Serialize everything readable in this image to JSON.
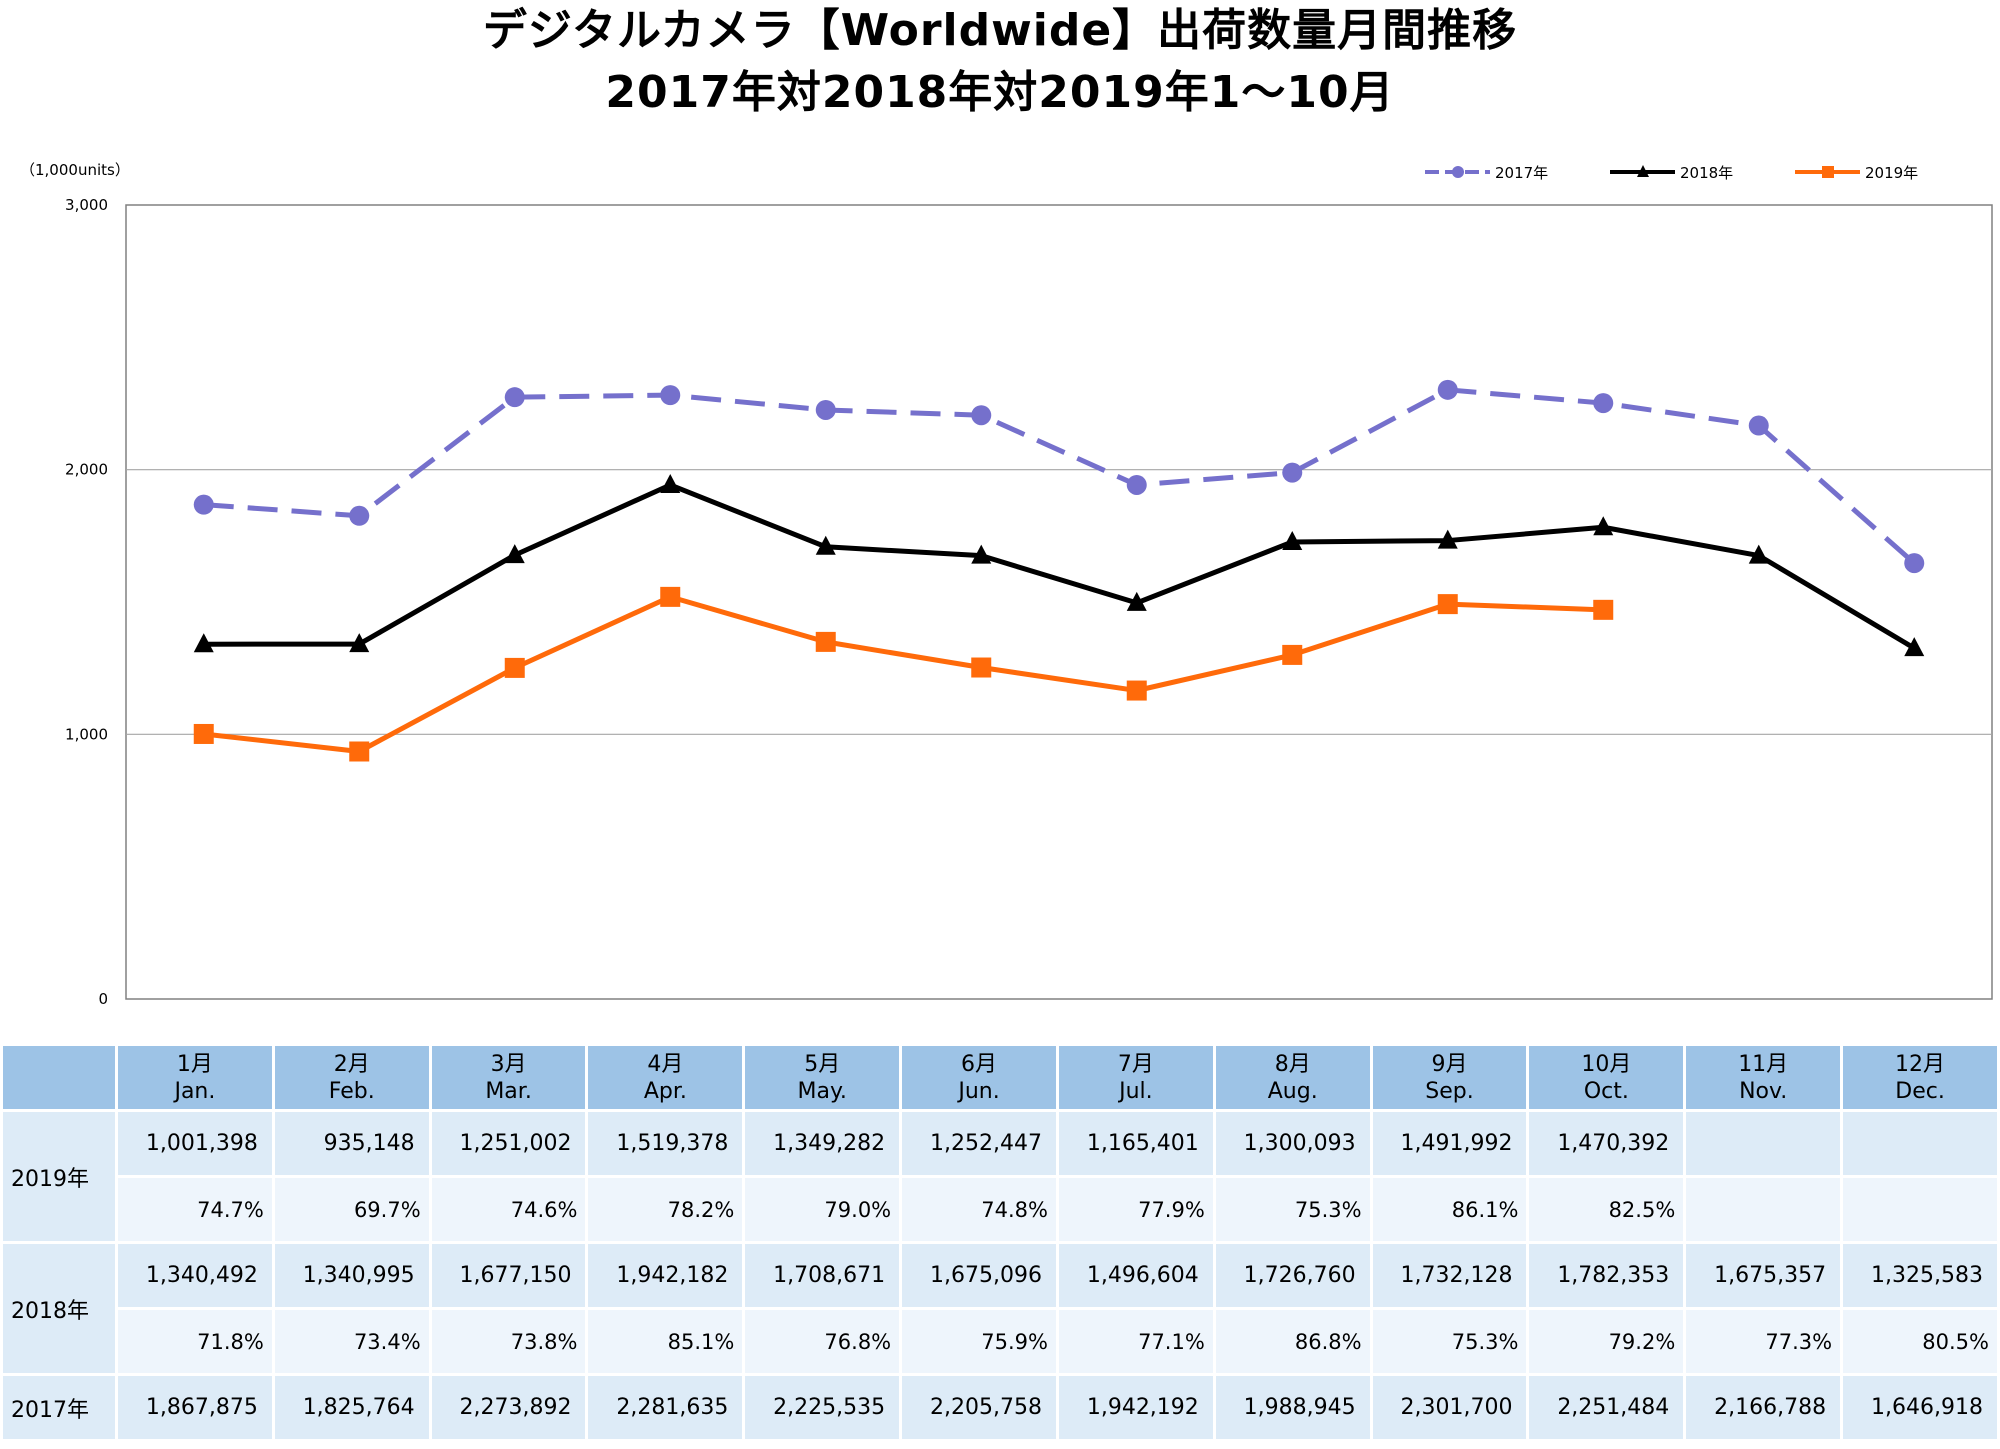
{
  "title": {
    "line1": "デジタルカメラ【Worldwide】出荷数量月間推移",
    "line2": "2017年対2018年対2019年1～10月"
  },
  "chart_data": {
    "type": "line",
    "unit_label": "（1,000units）",
    "ylim": [
      0,
      3000
    ],
    "yticks": [
      0,
      1000,
      2000,
      3000
    ],
    "ytick_labels": [
      "0",
      "1,000",
      "2,000",
      "3,000"
    ],
    "grid": true,
    "legend_position": "top-right",
    "categories": [
      "1月",
      "2月",
      "3月",
      "4月",
      "5月",
      "6月",
      "7月",
      "8月",
      "9月",
      "10月",
      "11月",
      "12月"
    ],
    "series": [
      {
        "name": "2017年",
        "color": "#7570cc",
        "style": "dashed",
        "marker": "circle",
        "values": [
          1867.875,
          1825.764,
          2273.892,
          2281.635,
          2225.535,
          2205.758,
          1942.192,
          1988.945,
          2301.7,
          2251.484,
          2166.788,
          1646.918
        ]
      },
      {
        "name": "2018年",
        "color": "#000000",
        "style": "solid",
        "marker": "triangle",
        "values": [
          1340.492,
          1340.995,
          1677.15,
          1942.182,
          1708.671,
          1675.096,
          1496.604,
          1726.76,
          1732.128,
          1782.353,
          1675.357,
          1325.583
        ]
      },
      {
        "name": "2019年",
        "color": "#ff6a0a",
        "style": "solid",
        "marker": "square",
        "values": [
          1001.398,
          935.148,
          1251.002,
          1519.378,
          1349.282,
          1252.447,
          1165.401,
          1300.093,
          1491.992,
          1470.392,
          null,
          null
        ]
      }
    ]
  },
  "table": {
    "months": [
      {
        "jp": "1月",
        "en": "Jan."
      },
      {
        "jp": "2月",
        "en": "Feb."
      },
      {
        "jp": "3月",
        "en": "Mar."
      },
      {
        "jp": "4月",
        "en": "Apr."
      },
      {
        "jp": "5月",
        "en": "May."
      },
      {
        "jp": "6月",
        "en": "Jun."
      },
      {
        "jp": "7月",
        "en": "Jul."
      },
      {
        "jp": "8月",
        "en": "Aug."
      },
      {
        "jp": "9月",
        "en": "Sep."
      },
      {
        "jp": "10月",
        "en": "Oct."
      },
      {
        "jp": "11月",
        "en": "Nov."
      },
      {
        "jp": "12月",
        "en": "Dec."
      }
    ],
    "rows": [
      {
        "label": "2019年",
        "values": [
          "1,001,398",
          "935,148",
          "1,251,002",
          "1,519,378",
          "1,349,282",
          "1,252,447",
          "1,165,401",
          "1,300,093",
          "1,491,992",
          "1,470,392",
          "",
          ""
        ],
        "ratios": [
          "74.7%",
          "69.7%",
          "74.6%",
          "78.2%",
          "79.0%",
          "74.8%",
          "77.9%",
          "75.3%",
          "86.1%",
          "82.5%",
          "",
          ""
        ]
      },
      {
        "label": "2018年",
        "values": [
          "1,340,492",
          "1,340,995",
          "1,677,150",
          "1,942,182",
          "1,708,671",
          "1,675,096",
          "1,496,604",
          "1,726,760",
          "1,732,128",
          "1,782,353",
          "1,675,357",
          "1,325,583"
        ],
        "ratios": [
          "71.8%",
          "73.4%",
          "73.8%",
          "85.1%",
          "76.8%",
          "75.9%",
          "77.1%",
          "86.8%",
          "75.3%",
          "79.2%",
          "77.3%",
          "80.5%"
        ]
      },
      {
        "label": "2017年",
        "values": [
          "1,867,875",
          "1,825,764",
          "2,273,892",
          "2,281,635",
          "2,225,535",
          "2,205,758",
          "1,942,192",
          "1,988,945",
          "2,301,700",
          "2,251,484",
          "2,166,788",
          "1,646,918"
        ],
        "ratios": null
      }
    ]
  }
}
